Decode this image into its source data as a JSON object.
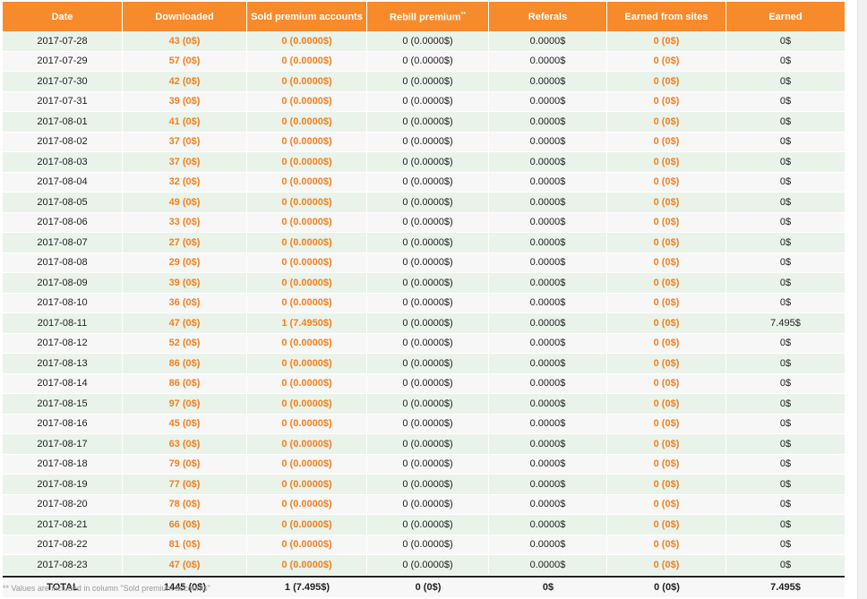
{
  "table": {
    "headers": {
      "date": "Date",
      "downloaded": "Downloaded",
      "sold_premium": "Sold premium accounts",
      "rebill_premium": "Rebill premium",
      "rebill_mark": "**",
      "referals": "Referals",
      "earned_from_sites": "Earned from sites",
      "earned": "Earned"
    },
    "rows": [
      {
        "date": "2017-07-28",
        "downloaded": "43 (0$)",
        "sold": "0 (0.0000$)",
        "rebill": "0 (0.0000$)",
        "referals": "0.0000$",
        "sites": "0 (0$)",
        "earned": "0$"
      },
      {
        "date": "2017-07-29",
        "downloaded": "57 (0$)",
        "sold": "0 (0.0000$)",
        "rebill": "0 (0.0000$)",
        "referals": "0.0000$",
        "sites": "0 (0$)",
        "earned": "0$"
      },
      {
        "date": "2017-07-30",
        "downloaded": "42 (0$)",
        "sold": "0 (0.0000$)",
        "rebill": "0 (0.0000$)",
        "referals": "0.0000$",
        "sites": "0 (0$)",
        "earned": "0$"
      },
      {
        "date": "2017-07-31",
        "downloaded": "39 (0$)",
        "sold": "0 (0.0000$)",
        "rebill": "0 (0.0000$)",
        "referals": "0.0000$",
        "sites": "0 (0$)",
        "earned": "0$"
      },
      {
        "date": "2017-08-01",
        "downloaded": "41 (0$)",
        "sold": "0 (0.0000$)",
        "rebill": "0 (0.0000$)",
        "referals": "0.0000$",
        "sites": "0 (0$)",
        "earned": "0$"
      },
      {
        "date": "2017-08-02",
        "downloaded": "37 (0$)",
        "sold": "0 (0.0000$)",
        "rebill": "0 (0.0000$)",
        "referals": "0.0000$",
        "sites": "0 (0$)",
        "earned": "0$"
      },
      {
        "date": "2017-08-03",
        "downloaded": "37 (0$)",
        "sold": "0 (0.0000$)",
        "rebill": "0 (0.0000$)",
        "referals": "0.0000$",
        "sites": "0 (0$)",
        "earned": "0$"
      },
      {
        "date": "2017-08-04",
        "downloaded": "32 (0$)",
        "sold": "0 (0.0000$)",
        "rebill": "0 (0.0000$)",
        "referals": "0.0000$",
        "sites": "0 (0$)",
        "earned": "0$"
      },
      {
        "date": "2017-08-05",
        "downloaded": "49 (0$)",
        "sold": "0 (0.0000$)",
        "rebill": "0 (0.0000$)",
        "referals": "0.0000$",
        "sites": "0 (0$)",
        "earned": "0$"
      },
      {
        "date": "2017-08-06",
        "downloaded": "33 (0$)",
        "sold": "0 (0.0000$)",
        "rebill": "0 (0.0000$)",
        "referals": "0.0000$",
        "sites": "0 (0$)",
        "earned": "0$"
      },
      {
        "date": "2017-08-07",
        "downloaded": "27 (0$)",
        "sold": "0 (0.0000$)",
        "rebill": "0 (0.0000$)",
        "referals": "0.0000$",
        "sites": "0 (0$)",
        "earned": "0$"
      },
      {
        "date": "2017-08-08",
        "downloaded": "29 (0$)",
        "sold": "0 (0.0000$)",
        "rebill": "0 (0.0000$)",
        "referals": "0.0000$",
        "sites": "0 (0$)",
        "earned": "0$"
      },
      {
        "date": "2017-08-09",
        "downloaded": "39 (0$)",
        "sold": "0 (0.0000$)",
        "rebill": "0 (0.0000$)",
        "referals": "0.0000$",
        "sites": "0 (0$)",
        "earned": "0$"
      },
      {
        "date": "2017-08-10",
        "downloaded": "36 (0$)",
        "sold": "0 (0.0000$)",
        "rebill": "0 (0.0000$)",
        "referals": "0.0000$",
        "sites": "0 (0$)",
        "earned": "0$"
      },
      {
        "date": "2017-08-11",
        "downloaded": "47 (0$)",
        "sold": "1 (7.4950$)",
        "rebill": "0 (0.0000$)",
        "referals": "0.0000$",
        "sites": "0 (0$)",
        "earned": "7.495$"
      },
      {
        "date": "2017-08-12",
        "downloaded": "52 (0$)",
        "sold": "0 (0.0000$)",
        "rebill": "0 (0.0000$)",
        "referals": "0.0000$",
        "sites": "0 (0$)",
        "earned": "0$"
      },
      {
        "date": "2017-08-13",
        "downloaded": "86 (0$)",
        "sold": "0 (0.0000$)",
        "rebill": "0 (0.0000$)",
        "referals": "0.0000$",
        "sites": "0 (0$)",
        "earned": "0$"
      },
      {
        "date": "2017-08-14",
        "downloaded": "86 (0$)",
        "sold": "0 (0.0000$)",
        "rebill": "0 (0.0000$)",
        "referals": "0.0000$",
        "sites": "0 (0$)",
        "earned": "0$"
      },
      {
        "date": "2017-08-15",
        "downloaded": "97 (0$)",
        "sold": "0 (0.0000$)",
        "rebill": "0 (0.0000$)",
        "referals": "0.0000$",
        "sites": "0 (0$)",
        "earned": "0$"
      },
      {
        "date": "2017-08-16",
        "downloaded": "45 (0$)",
        "sold": "0 (0.0000$)",
        "rebill": "0 (0.0000$)",
        "referals": "0.0000$",
        "sites": "0 (0$)",
        "earned": "0$"
      },
      {
        "date": "2017-08-17",
        "downloaded": "63 (0$)",
        "sold": "0 (0.0000$)",
        "rebill": "0 (0.0000$)",
        "referals": "0.0000$",
        "sites": "0 (0$)",
        "earned": "0$"
      },
      {
        "date": "2017-08-18",
        "downloaded": "79 (0$)",
        "sold": "0 (0.0000$)",
        "rebill": "0 (0.0000$)",
        "referals": "0.0000$",
        "sites": "0 (0$)",
        "earned": "0$"
      },
      {
        "date": "2017-08-19",
        "downloaded": "77 (0$)",
        "sold": "0 (0.0000$)",
        "rebill": "0 (0.0000$)",
        "referals": "0.0000$",
        "sites": "0 (0$)",
        "earned": "0$"
      },
      {
        "date": "2017-08-20",
        "downloaded": "78 (0$)",
        "sold": "0 (0.0000$)",
        "rebill": "0 (0.0000$)",
        "referals": "0.0000$",
        "sites": "0 (0$)",
        "earned": "0$"
      },
      {
        "date": "2017-08-21",
        "downloaded": "66 (0$)",
        "sold": "0 (0.0000$)",
        "rebill": "0 (0.0000$)",
        "referals": "0.0000$",
        "sites": "0 (0$)",
        "earned": "0$"
      },
      {
        "date": "2017-08-22",
        "downloaded": "81 (0$)",
        "sold": "0 (0.0000$)",
        "rebill": "0 (0.0000$)",
        "referals": "0.0000$",
        "sites": "0 (0$)",
        "earned": "0$"
      },
      {
        "date": "2017-08-23",
        "downloaded": "47 (0$)",
        "sold": "0 (0.0000$)",
        "rebill": "0 (0.0000$)",
        "referals": "0.0000$",
        "sites": "0 (0$)",
        "earned": "0$"
      }
    ],
    "total": {
      "label": "TOTAL",
      "downloaded": "1445 (0$)",
      "sold": "1 (7.495$)",
      "rebill": "0 (0$)",
      "referals": "0$",
      "sites": "0 (0$)",
      "earned": "7.495$"
    }
  },
  "footnote": "** Values are included in column \"Sold premium accounts\"",
  "colors": {
    "header_bg": "#f78b2b",
    "accent_text": "#f3801f",
    "row_green": "#e9f3ea",
    "row_gray": "#f7f7f7"
  }
}
